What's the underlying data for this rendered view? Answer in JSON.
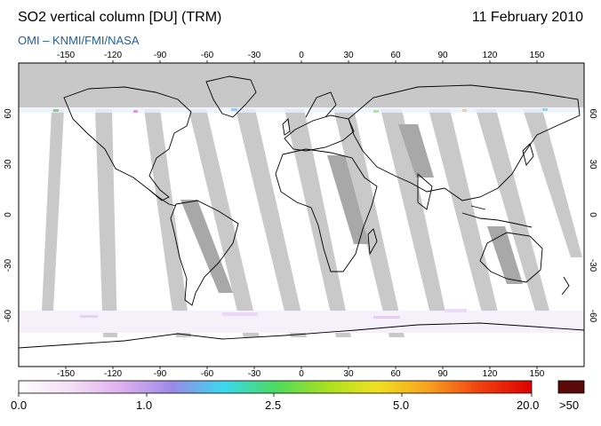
{
  "header": {
    "title": "SO2 vertical column [DU] (TRM)",
    "date": "11 February 2010",
    "source": "OMI  –  KNMI/FMI/NASA"
  },
  "map": {
    "lon_ticks": [
      "-150",
      "-120",
      "-90",
      "-60",
      "-30",
      "0",
      "30",
      "60",
      "90",
      "120",
      "150"
    ],
    "lat_ticks": [
      "60",
      "30",
      "0",
      "-30",
      "-60"
    ],
    "no_data_color": "#c8c8c8",
    "swath_color": "#c0c0c0",
    "land_outline_color": "#000000",
    "background_color": "#ffffff"
  },
  "colorbar": {
    "labels": [
      "0.0",
      "1.0",
      "2.5",
      "5.0",
      "20.0"
    ],
    "overflow_label": ">50",
    "overflow_color": "#5a0a0a",
    "gradient_colors": [
      "#ffffff",
      "#f5e0f5",
      "#e0b0f0",
      "#9a8ae8",
      "#3ad8f0",
      "#4adc60",
      "#a8e020",
      "#f0e020",
      "#f8a020",
      "#f04010",
      "#e00000"
    ]
  }
}
